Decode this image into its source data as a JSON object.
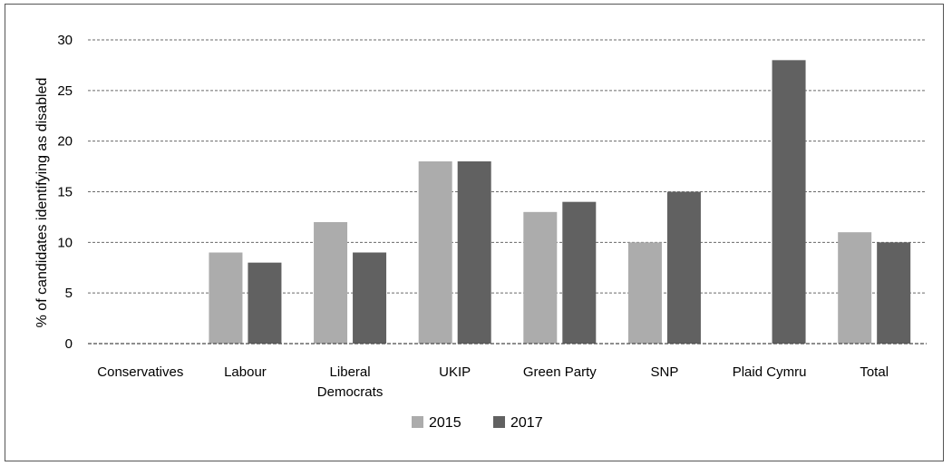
{
  "chart_data": {
    "type": "bar",
    "title": "",
    "xlabel": "",
    "ylabel": "% of candidates identifying as disabled",
    "ylim": [
      0,
      30
    ],
    "yticks": [
      0,
      5,
      10,
      15,
      20,
      25,
      30
    ],
    "grid": true,
    "legend_position": "bottom",
    "categories": [
      [
        "Conservatives"
      ],
      [
        "Labour"
      ],
      [
        "Liberal",
        "Democrats"
      ],
      [
        "UKIP"
      ],
      [
        "Green Party"
      ],
      [
        "SNP"
      ],
      [
        "Plaid Cymru"
      ],
      [
        "Total"
      ]
    ],
    "series": [
      {
        "name": "2015",
        "color": "#acacac",
        "values": [
          0,
          9,
          12,
          18,
          13,
          10,
          0,
          11
        ]
      },
      {
        "name": "2017",
        "color": "#616161",
        "values": [
          0,
          8,
          9,
          18,
          14,
          15,
          28,
          10
        ]
      }
    ]
  }
}
